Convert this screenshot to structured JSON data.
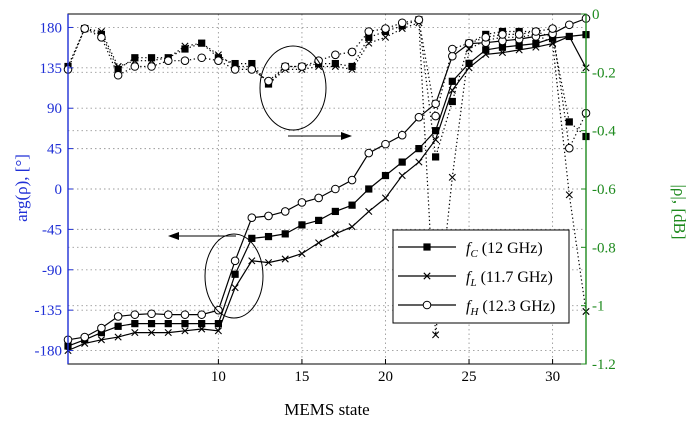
{
  "chart_data": {
    "type": "line",
    "xlabel": "MEMS state",
    "ylabel_left": "arg(ρ), [°]",
    "ylabel_right": "|ρ|, [dB]",
    "xlim": [
      1,
      32
    ],
    "ylim_left": [
      -195,
      195
    ],
    "ylim_right": [
      -1.2,
      0
    ],
    "x_ticks": [
      10,
      15,
      20,
      25,
      30
    ],
    "y_ticks_left": [
      -180,
      -135,
      -90,
      -45,
      0,
      45,
      90,
      135,
      180
    ],
    "y_ticks_right": [
      -1.2,
      -1,
      -0.8,
      -0.6,
      -0.4,
      -0.2,
      0
    ],
    "y_tick_labels_right": [
      "-1.2",
      "-1",
      "-0.8",
      "-0.6",
      "-0.4",
      "-0.2",
      "0"
    ],
    "grid": true,
    "legend_position": "lower-right",
    "x": [
      1,
      2,
      3,
      4,
      5,
      6,
      7,
      8,
      9,
      10,
      11,
      12,
      13,
      14,
      15,
      16,
      17,
      18,
      19,
      20,
      21,
      22,
      23,
      24,
      25,
      26,
      27,
      28,
      29,
      30,
      31,
      32
    ],
    "series": [
      {
        "name": "f_C (12 GHz)",
        "legend_main": "f",
        "legend_sub": "C",
        "legend_rest": "(12 GHz)",
        "marker": "square",
        "phase": [
          -175,
          -168,
          -160,
          -153,
          -150,
          -150,
          -150,
          -150,
          -150,
          -150,
          -95,
          -55,
          -53,
          -50,
          -40,
          -35,
          -25,
          -18,
          0,
          15,
          30,
          45,
          65,
          120,
          140,
          155,
          158,
          160,
          162,
          168,
          170,
          172
        ],
        "magnitude": [
          -0.18,
          -0.05,
          -0.07,
          -0.19,
          -0.15,
          -0.15,
          -0.15,
          -0.12,
          -0.1,
          -0.15,
          -0.17,
          -0.17,
          -0.24,
          -0.18,
          -0.18,
          -0.17,
          -0.17,
          -0.18,
          -0.08,
          -0.06,
          -0.04,
          -0.02,
          -0.49,
          -0.3,
          -0.1,
          -0.07,
          -0.06,
          -0.06,
          -0.06,
          -0.08,
          -0.37,
          -0.42
        ]
      },
      {
        "name": "f_L (11.7 GHz)",
        "legend_main": "f",
        "legend_sub": "L",
        "legend_rest": "(11.7 GHz)",
        "marker": "x",
        "phase": [
          -180,
          -172,
          -168,
          -165,
          -160,
          -160,
          -160,
          -158,
          -156,
          -158,
          -110,
          -80,
          -82,
          -78,
          -72,
          -60,
          -50,
          -42,
          -25,
          -10,
          15,
          30,
          55,
          110,
          135,
          150,
          152,
          155,
          158,
          162,
          170,
          135
        ],
        "magnitude": [
          -0.18,
          -0.05,
          -0.06,
          -0.18,
          -0.16,
          -0.16,
          -0.15,
          -0.11,
          -0.1,
          -0.14,
          -0.18,
          -0.18,
          -0.24,
          -0.19,
          -0.19,
          -0.18,
          -0.18,
          -0.19,
          -0.1,
          -0.08,
          -0.05,
          -0.03,
          -1.1,
          -0.56,
          -0.12,
          -0.09,
          -0.08,
          -0.08,
          -0.07,
          -0.1,
          -0.62,
          -1.02
        ]
      },
      {
        "name": "f_H (12.3 GHz)",
        "legend_main": "f",
        "legend_sub": "H",
        "legend_rest": "(12.3 GHz)",
        "marker": "circle",
        "phase": [
          -168,
          -165,
          -155,
          -142,
          -140,
          -139,
          -140,
          -140,
          -140,
          -135,
          -80,
          -32,
          -30,
          -25,
          -15,
          -10,
          0,
          10,
          40,
          50,
          60,
          80,
          95,
          148,
          162,
          163,
          165,
          167,
          170,
          173,
          183,
          190
        ],
        "magnitude": [
          -0.19,
          -0.05,
          -0.08,
          -0.21,
          -0.18,
          -0.18,
          -0.16,
          -0.16,
          -0.15,
          -0.16,
          -0.19,
          -0.19,
          -0.23,
          -0.18,
          -0.18,
          -0.16,
          -0.14,
          -0.13,
          -0.06,
          -0.05,
          -0.03,
          -0.02,
          -0.35,
          -0.12,
          -0.1,
          -0.08,
          -0.07,
          -0.07,
          -0.06,
          -0.05,
          -0.46,
          -0.34
        ]
      }
    ]
  }
}
